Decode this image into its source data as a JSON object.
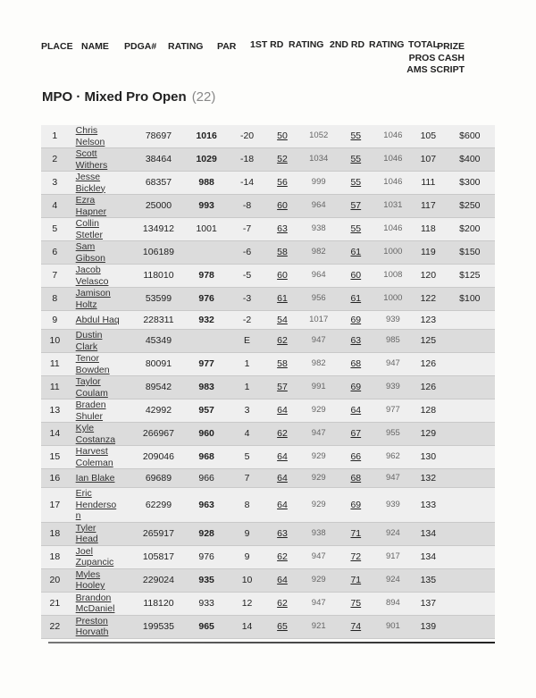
{
  "columns": {
    "place": "PLACE",
    "name": "NAME",
    "pdga": "PDGA#",
    "rating": "RATING",
    "par": "PAR",
    "rd1": "1ST RD",
    "rd1_rating": "RATING",
    "rd2": "2ND RD",
    "rd2_rating": "RATING",
    "total": "TOTAL",
    "prize": [
      "PRIZE",
      "PROS CASH",
      "AMS SCRIPT"
    ]
  },
  "division": {
    "title": "MPO · Mixed Pro Open",
    "count": "(22)"
  },
  "rows": [
    {
      "place": "1",
      "first": "Chris",
      "last": "Nelson",
      "pdga": "78697",
      "rating": "1016",
      "bold": true,
      "par": "-20",
      "rd1": "50",
      "rd1r": "1052",
      "rd2": "55",
      "rd2r": "1046",
      "total": "105",
      "prize": "$600"
    },
    {
      "place": "2",
      "first": "Scott",
      "last": "Withers",
      "pdga": "38464",
      "rating": "1029",
      "bold": true,
      "par": "-18",
      "rd1": "52",
      "rd1r": "1034",
      "rd2": "55",
      "rd2r": "1046",
      "total": "107",
      "prize": "$400"
    },
    {
      "place": "3",
      "first": "Jesse",
      "last": "Bickley",
      "pdga": "68357",
      "rating": "988",
      "bold": true,
      "par": "-14",
      "rd1": "56",
      "rd1r": "999",
      "rd2": "55",
      "rd2r": "1046",
      "total": "111",
      "prize": "$300"
    },
    {
      "place": "4",
      "first": "Ezra",
      "last": "Hapner",
      "pdga": "25000",
      "rating": "993",
      "bold": true,
      "par": "-8",
      "rd1": "60",
      "rd1r": "964",
      "rd2": "57",
      "rd2r": "1031",
      "total": "117",
      "prize": "$250"
    },
    {
      "place": "5",
      "first": "Collin",
      "last": "Stetler",
      "pdga": "134912",
      "rating": "1001",
      "bold": false,
      "par": "-7",
      "rd1": "63",
      "rd1r": "938",
      "rd2": "55",
      "rd2r": "1046",
      "total": "118",
      "prize": "$200"
    },
    {
      "place": "6",
      "first": "Sam",
      "last": "Gibson",
      "pdga": "106189",
      "rating": "",
      "bold": false,
      "par": "-6",
      "rd1": "58",
      "rd1r": "982",
      "rd2": "61",
      "rd2r": "1000",
      "total": "119",
      "prize": "$150"
    },
    {
      "place": "7",
      "first": "Jacob",
      "last": "Velasco",
      "pdga": "118010",
      "rating": "978",
      "bold": true,
      "par": "-5",
      "rd1": "60",
      "rd1r": "964",
      "rd2": "60",
      "rd2r": "1008",
      "total": "120",
      "prize": "$125"
    },
    {
      "place": "8",
      "first": "Jamison",
      "last": "Holtz",
      "pdga": "53599",
      "rating": "976",
      "bold": true,
      "par": "-3",
      "rd1": "61",
      "rd1r": "956",
      "rd2": "61",
      "rd2r": "1000",
      "total": "122",
      "prize": "$100"
    },
    {
      "place": "9",
      "first": "Abdul Haq",
      "last": "",
      "pdga": "228311",
      "rating": "932",
      "bold": true,
      "par": "-2",
      "rd1": "54",
      "rd1r": "1017",
      "rd2": "69",
      "rd2r": "939",
      "total": "123",
      "prize": ""
    },
    {
      "place": "10",
      "first": "Dustin",
      "last": "Clark",
      "pdga": "45349",
      "rating": "",
      "bold": false,
      "par": "E",
      "rd1": "62",
      "rd1r": "947",
      "rd2": "63",
      "rd2r": "985",
      "total": "125",
      "prize": ""
    },
    {
      "place": "11",
      "first": "Tenor",
      "last": "Bowden",
      "pdga": "80091",
      "rating": "977",
      "bold": true,
      "par": "1",
      "rd1": "58",
      "rd1r": "982",
      "rd2": "68",
      "rd2r": "947",
      "total": "126",
      "prize": ""
    },
    {
      "place": "11",
      "first": "Taylor",
      "last": "Coulam",
      "pdga": "89542",
      "rating": "983",
      "bold": true,
      "par": "1",
      "rd1": "57",
      "rd1r": "991",
      "rd2": "69",
      "rd2r": "939",
      "total": "126",
      "prize": ""
    },
    {
      "place": "13",
      "first": "Braden",
      "last": "Shuler",
      "pdga": "42992",
      "rating": "957",
      "bold": true,
      "par": "3",
      "rd1": "64",
      "rd1r": "929",
      "rd2": "64",
      "rd2r": "977",
      "total": "128",
      "prize": ""
    },
    {
      "place": "14",
      "first": "Kyle",
      "last": "Costanza",
      "pdga": "266967",
      "rating": "960",
      "bold": true,
      "par": "4",
      "rd1": "62",
      "rd1r": "947",
      "rd2": "67",
      "rd2r": "955",
      "total": "129",
      "prize": ""
    },
    {
      "place": "15",
      "first": "Harvest",
      "last": "Coleman",
      "pdga": "209046",
      "rating": "968",
      "bold": true,
      "par": "5",
      "rd1": "64",
      "rd1r": "929",
      "rd2": "66",
      "rd2r": "962",
      "total": "130",
      "prize": ""
    },
    {
      "place": "16",
      "first": "Ian Blake",
      "last": "",
      "pdga": "69689",
      "rating": "966",
      "bold": false,
      "par": "7",
      "rd1": "64",
      "rd1r": "929",
      "rd2": "68",
      "rd2r": "947",
      "total": "132",
      "prize": ""
    },
    {
      "place": "17",
      "first": "Eric",
      "last": "Henderso n",
      "pdga": "62299",
      "rating": "963",
      "bold": true,
      "par": "8",
      "rd1": "64",
      "rd1r": "929",
      "rd2": "69",
      "rd2r": "939",
      "total": "133",
      "prize": ""
    },
    {
      "place": "18",
      "first": "Tyler",
      "last": "Head",
      "pdga": "265917",
      "rating": "928",
      "bold": true,
      "par": "9",
      "rd1": "63",
      "rd1r": "938",
      "rd2": "71",
      "rd2r": "924",
      "total": "134",
      "prize": ""
    },
    {
      "place": "18",
      "first": "Joel",
      "last": "Zupancic",
      "pdga": "105817",
      "rating": "976",
      "bold": false,
      "par": "9",
      "rd1": "62",
      "rd1r": "947",
      "rd2": "72",
      "rd2r": "917",
      "total": "134",
      "prize": ""
    },
    {
      "place": "20",
      "first": "Myles",
      "last": "Hooley",
      "pdga": "229024",
      "rating": "935",
      "bold": true,
      "par": "10",
      "rd1": "64",
      "rd1r": "929",
      "rd2": "71",
      "rd2r": "924",
      "total": "135",
      "prize": ""
    },
    {
      "place": "21",
      "first": "Brandon",
      "last": "McDaniel",
      "pdga": "118120",
      "rating": "933",
      "bold": false,
      "par": "12",
      "rd1": "62",
      "rd1r": "947",
      "rd2": "75",
      "rd2r": "894",
      "total": "137",
      "prize": ""
    },
    {
      "place": "22",
      "first": "Preston",
      "last": "Horvath",
      "pdga": "199535",
      "rating": "965",
      "bold": true,
      "par": "14",
      "rd1": "65",
      "rd1r": "921",
      "rd2": "74",
      "rd2r": "901",
      "total": "139",
      "prize": ""
    }
  ]
}
